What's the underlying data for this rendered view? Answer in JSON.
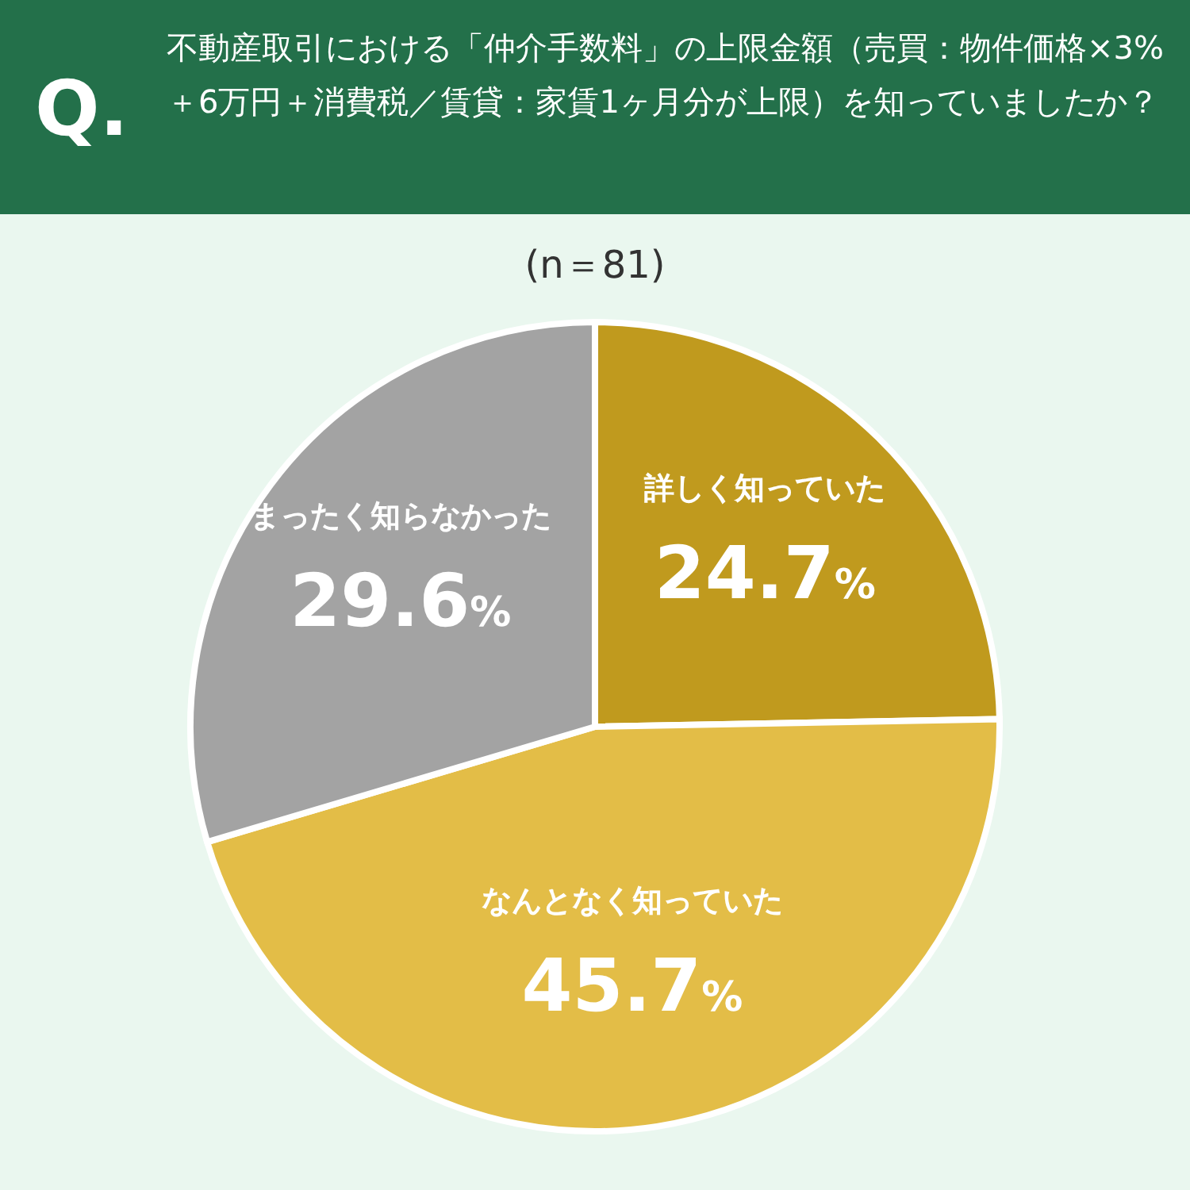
{
  "chart_data": {
    "type": "pie",
    "title": "不動産取引における「仲介手数料」の上限金額（売買：物件価格×3%＋6万円＋消費税／賃貸：家賃1ヶ月分が上限）を知っていましたか？",
    "subtitle": "(n＝81)",
    "annotations": [
      "Q."
    ],
    "categories": [
      "詳しく知っていた",
      "なんとなく知っていた",
      "まったく知らなかった"
    ],
    "values": [
      24.7,
      45.7,
      29.6
    ],
    "colors": [
      "#c09a1e",
      "#e3bd47",
      "#a3a3a3"
    ],
    "value_labels": [
      "24.7%",
      "45.7%",
      "29.6%"
    ]
  }
}
